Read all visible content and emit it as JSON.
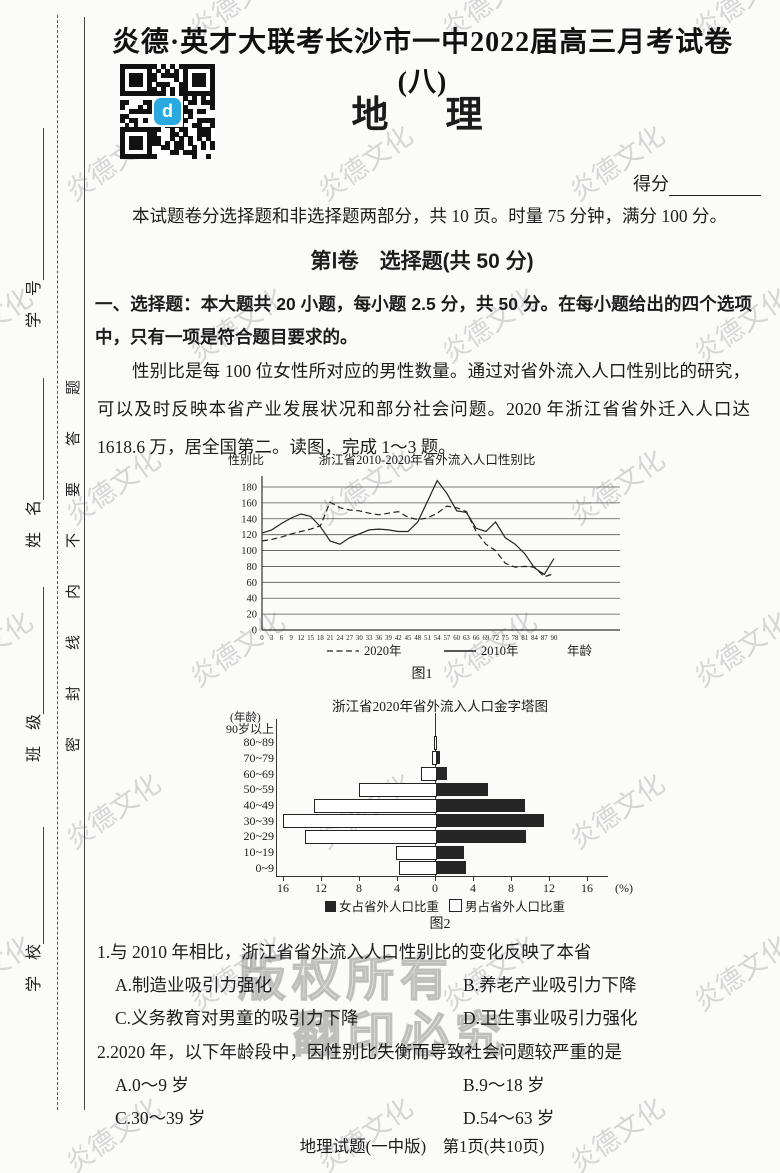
{
  "page": {
    "header_title": "炎德·英才大联考长沙市一中2022届高三月考试卷(八)",
    "subject_title": "地　理",
    "score_label": "得分",
    "intro": "本试题卷分选择题和非选择题两部分，共 10 页。时量 75 分钟，满分 100 分。",
    "part1_heading": "第Ⅰ卷　选择题(共 50 分)",
    "section1_instruction": "一、选择题：本大题共 20 小题，每小题 2.5 分，共 50 分。在每小题给出的四个选项中，只有一项是符合题目要求的。",
    "passage": "性别比是每 100 位女性所对应的男性数量。通过对省外流入人口性别比的研究，可以及时反映本省产业发展状况和部分社会问题。2020 年浙江省省外迁入人口达 1618.6 万，居全国第二。读图，完成 1～3 题。",
    "footer": "地理试题(一中版)　第1页(共10页)"
  },
  "sidebar": {
    "fields": [
      {
        "label": "学　号"
      },
      {
        "label": "姓　名"
      },
      {
        "label": "班　级"
      },
      {
        "label": "学　校"
      }
    ],
    "seal_text": "密封线内不要答题"
  },
  "watermark": {
    "text": "炎德文化",
    "copyright_line1": "版权所有",
    "copyright_line2": "翻印必究",
    "color": "#d6d6d6"
  },
  "qr": {
    "logo_glyph": "d",
    "logo_color": "#2aa9e0"
  },
  "questions": [
    {
      "number": "1.",
      "stem": "与 2010 年相比，浙江省省外流入人口性别比的变化反映了本省",
      "options": [
        {
          "key": "A.",
          "text": "制造业吸引力强化"
        },
        {
          "key": "B.",
          "text": "养老产业吸引力下降"
        },
        {
          "key": "C.",
          "text": "义务教育对男童的吸引力下降"
        },
        {
          "key": "D.",
          "text": "卫生事业吸引力强化"
        }
      ]
    },
    {
      "number": "2.",
      "stem": "2020 年，以下年龄段中，因性别比失衡而导致社会问题较严重的是",
      "options": [
        {
          "key": "A.",
          "text": "0～9 岁"
        },
        {
          "key": "B.",
          "text": "9～18 岁"
        },
        {
          "key": "C.",
          "text": "30～39 岁"
        },
        {
          "key": "D.",
          "text": "54～63 岁"
        }
      ]
    }
  ],
  "chart_data": [
    {
      "type": "line",
      "title": "浙江省2010-2020年省外流入人口性别比",
      "ylabel": "性别比",
      "xlabel": "年龄",
      "caption": "图1",
      "x": [
        0,
        3,
        6,
        9,
        12,
        15,
        18,
        21,
        24,
        27,
        30,
        33,
        36,
        39,
        42,
        45,
        48,
        51,
        54,
        57,
        60,
        63,
        66,
        69,
        72,
        75,
        78,
        81,
        84,
        87,
        90
      ],
      "ylim": [
        0,
        190
      ],
      "yticks": [
        0,
        20,
        40,
        60,
        80,
        100,
        120,
        140,
        160,
        180
      ],
      "grid": true,
      "legend_position": "bottom",
      "series": [
        {
          "name": "2020年",
          "style": "dashed",
          "values": [
            112,
            114,
            117,
            121,
            124,
            127,
            131,
            161,
            154,
            151,
            150,
            147,
            145,
            147,
            149,
            142,
            139,
            141,
            147,
            156,
            154,
            149,
            124,
            108,
            100,
            84,
            79,
            80,
            79,
            67,
            71
          ]
        },
        {
          "name": "2010年",
          "style": "solid",
          "values": [
            122,
            126,
            134,
            141,
            146,
            143,
            130,
            112,
            108,
            116,
            121,
            126,
            127,
            126,
            124,
            124,
            136,
            162,
            188,
            172,
            150,
            148,
            128,
            124,
            136,
            116,
            108,
            96,
            78,
            70,
            90
          ]
        }
      ]
    },
    {
      "type": "bar",
      "subtype": "population-pyramid",
      "title": "浙江省2020年省外流入人口金字塔图",
      "ylabel": "(年龄)",
      "caption": "图2",
      "unit": "(%)",
      "xticks": [
        16,
        12,
        8,
        4,
        0,
        4,
        8,
        12,
        16
      ],
      "xmax_each_side": 16,
      "categories_top_to_bottom": [
        "90岁以上",
        "80~89",
        "70~79",
        "60~69",
        "50~59",
        "40~49",
        "30~39",
        "20~29",
        "10~19",
        "0~9"
      ],
      "series": [
        {
          "name": "男占省外人口比重",
          "side": "left",
          "fill": "outline",
          "values": [
            0,
            0.1,
            0.3,
            1.5,
            8,
            12.7,
            16,
            13.7,
            4.1,
            3.8
          ]
        },
        {
          "name": "女占省外人口比重",
          "side": "right",
          "fill": "filled",
          "values": [
            0,
            0.1,
            0.4,
            1.2,
            5.5,
            9.4,
            11.4,
            9.5,
            2.9,
            3.2
          ]
        }
      ],
      "legend": [
        {
          "swatch": "filled",
          "label": "女占省外人口比重"
        },
        {
          "swatch": "outline",
          "label": "男占省外人口比重"
        }
      ]
    }
  ]
}
